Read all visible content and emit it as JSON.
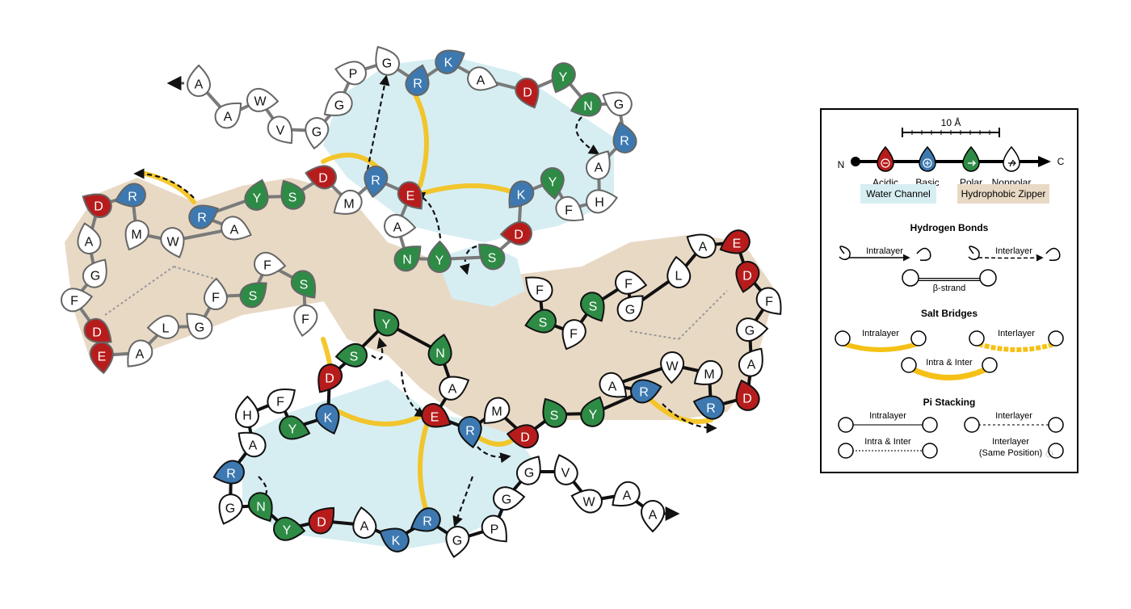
{
  "colors": {
    "acidic": "#b71c1c",
    "basic": "#3d79b0",
    "polar": "#2e8b45",
    "nonpolar": "#ffffff",
    "water_channel": "#d6eef2",
    "hydrophobic_zipper": "#e8d9c5",
    "salt_bridge": "#f5c116",
    "upper_backbone": "#7a7a7a",
    "lower_backbone": "#111111"
  },
  "icons": {
    "acidic": "minus-in-circle",
    "basic": "plus-in-circle",
    "polar": "arrow-right",
    "nonpolar": "crossed-arrow"
  },
  "upper_chain": [
    "A",
    "A",
    "W",
    "V",
    "G",
    "G",
    "P",
    "G",
    "R",
    "K",
    "A",
    "D",
    "Y",
    "N",
    "G",
    "R",
    "A",
    "H",
    "F",
    "Y",
    "K",
    "D",
    "S",
    "Y",
    "N",
    "A",
    "E",
    "R",
    "M",
    "D",
    "S",
    "Y",
    "R",
    "A",
    "W",
    "M",
    "R",
    "D",
    "A",
    "G",
    "F",
    "D",
    "E",
    "A",
    "L",
    "G",
    "F",
    "S",
    "F",
    "S",
    "F"
  ],
  "lower_chain": [
    "A",
    "A",
    "W",
    "V",
    "G",
    "G",
    "P",
    "G",
    "R",
    "K",
    "A",
    "D",
    "Y",
    "N",
    "G",
    "R",
    "A",
    "H",
    "F",
    "Y",
    "K",
    "D",
    "S",
    "Y",
    "N",
    "A",
    "E",
    "R",
    "M",
    "D",
    "S",
    "Y",
    "R",
    "A",
    "W",
    "M",
    "R",
    "D",
    "A",
    "G",
    "F",
    "D",
    "E",
    "A",
    "L",
    "G",
    "F",
    "S",
    "F",
    "S",
    "F"
  ],
  "legend": {
    "scale_label": "10 Å",
    "n_label": "N",
    "c_label": "C",
    "types": [
      "Acidic",
      "Basic",
      "Polar",
      "Nonpolar"
    ],
    "water_channel_label": "Water Channel",
    "zipper_label": "Hydrophobic Zipper",
    "hbonds": {
      "title": "Hydrogen Bonds",
      "intralayer": "Intralayer",
      "interlayer": "Interlayer",
      "beta": "β-strand"
    },
    "salt": {
      "title": "Salt Bridges",
      "intralayer": "Intralayer",
      "interlayer": "Interlayer",
      "both": "Intra & Inter"
    },
    "pi": {
      "title": "Pi Stacking",
      "intralayer": "Intralayer",
      "interlayer": "Interlayer",
      "both": "Intra & Inter",
      "same1": "Interlayer",
      "same2": "(Same Position)"
    }
  }
}
